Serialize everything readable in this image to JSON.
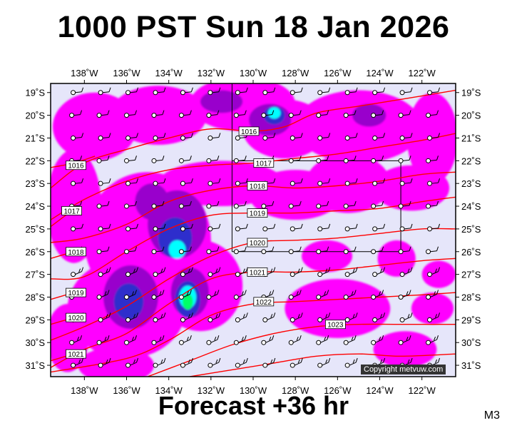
{
  "title": "1000 PST Sun 18 Jan 2026",
  "footer": "Forecast +36 hr",
  "model_code": "M3",
  "copyright": "Copyright metvuw.com",
  "colors": {
    "background": "#e6e6fa",
    "precip_light": "#ff00ff",
    "precip_medium": "#9900cc",
    "precip_heavy": "#2e2ecc",
    "precip_very_heavy": "#00ffff",
    "precip_extreme": "#00ff66",
    "isobar": "#ff0000",
    "frame": "#000000"
  },
  "chart_data": {
    "type": "map",
    "lon_ticks": [
      "138˚W",
      "136˚W",
      "134˚W",
      "132˚W",
      "130˚W",
      "128˚W",
      "126˚W",
      "124˚W",
      "122˚W"
    ],
    "lat_ticks": [
      "19˚S",
      "20˚S",
      "21˚S",
      "22˚S",
      "23˚S",
      "24˚S",
      "25˚S",
      "26˚S",
      "27˚S",
      "28˚S",
      "29˚S",
      "30˚S",
      "31˚S"
    ],
    "lon_range": [
      -139.6,
      -120.4
    ],
    "lat_range": [
      -31.5,
      -18.6
    ],
    "isobars": [
      {
        "label": "1016",
        "points": [
          [
            -139.6,
            -23.2
          ],
          [
            -138,
            -22.1
          ],
          [
            -136,
            -21.5
          ],
          [
            -134,
            -21.0
          ],
          [
            -132,
            -20.6
          ],
          [
            -130,
            -20.7
          ],
          [
            -128.5,
            -20.5
          ],
          [
            -127,
            -19.9
          ],
          [
            -125,
            -19.6
          ],
          [
            -123,
            -19.3
          ],
          [
            -120.4,
            -18.9
          ]
        ],
        "label_at": [
          -130.2,
          -20.7
        ]
      },
      {
        "label": "1016",
        "points": [
          [
            -139.6,
            -22.3
          ],
          [
            -138.5,
            -22.1
          ],
          [
            -137.5,
            -21.8
          ]
        ],
        "label_at": [
          -138.4,
          -22.2
        ]
      },
      {
        "label": "1017",
        "points": [
          [
            -139.6,
            -24.6
          ],
          [
            -138,
            -23.7
          ],
          [
            -136,
            -22.9
          ],
          [
            -134,
            -22.4
          ],
          [
            -132,
            -22.2
          ],
          [
            -130,
            -22.1
          ],
          [
            -128,
            -21.9
          ],
          [
            -126,
            -21.7
          ],
          [
            -124,
            -21.4
          ],
          [
            -122,
            -21.1
          ],
          [
            -120.4,
            -20.8
          ]
        ],
        "label_at": [
          -129.5,
          -22.1
        ]
      },
      {
        "label": "1017",
        "points": [
          [
            -139.6,
            -24.9
          ],
          [
            -138.6,
            -24.2
          ]
        ],
        "label_at": [
          -138.6,
          -24.2
        ]
      },
      {
        "label": "1018",
        "points": [
          [
            -139.6,
            -25.6
          ],
          [
            -138,
            -25.4
          ],
          [
            -136,
            -24.8
          ],
          [
            -134,
            -23.8
          ],
          [
            -132,
            -23.3
          ],
          [
            -130,
            -23.1
          ],
          [
            -128,
            -23.2
          ],
          [
            -126,
            -23.1
          ],
          [
            -124,
            -22.9
          ],
          [
            -122,
            -22.6
          ],
          [
            -120.4,
            -22.5
          ]
        ],
        "label_at": [
          -129.8,
          -23.1
        ]
      },
      {
        "label": "1018",
        "points": [
          [
            -139.6,
            -26.3
          ],
          [
            -138.5,
            -26.0
          ]
        ],
        "label_at": [
          -138.4,
          -26.0
        ]
      },
      {
        "label": "1019",
        "points": [
          [
            -139.6,
            -27.2
          ],
          [
            -138,
            -27.1
          ],
          [
            -136,
            -26.0
          ],
          [
            -134,
            -25.0
          ],
          [
            -132,
            -24.4
          ],
          [
            -130,
            -24.3
          ],
          [
            -128,
            -24.3
          ],
          [
            -126,
            -24.2
          ],
          [
            -124,
            -24.1
          ],
          [
            -122,
            -23.8
          ],
          [
            -120.4,
            -23.6
          ]
        ],
        "label_at": [
          -129.8,
          -24.3
        ]
      },
      {
        "label": "1019",
        "points": [
          [
            -139.6,
            -28.1
          ],
          [
            -138.5,
            -27.8
          ]
        ],
        "label_at": [
          -138.4,
          -27.8
        ]
      },
      {
        "label": "1020",
        "points": [
          [
            -139.6,
            -29.9
          ],
          [
            -138,
            -29.3
          ],
          [
            -136,
            -28.4
          ],
          [
            -134,
            -27.2
          ],
          [
            -132,
            -26.2
          ],
          [
            -130,
            -25.6
          ],
          [
            -128,
            -25.5
          ],
          [
            -126,
            -25.4
          ],
          [
            -124,
            -25.2
          ],
          [
            -122,
            -25.0
          ],
          [
            -120.4,
            -25.0
          ]
        ],
        "label_at": [
          -129.8,
          -25.6
        ]
      },
      {
        "label": "1020",
        "points": [
          [
            -139.6,
            -29.2
          ],
          [
            -138.5,
            -28.9
          ]
        ],
        "label_at": [
          -138.4,
          -28.9
        ]
      },
      {
        "label": "1021",
        "points": [
          [
            -139.6,
            -31.1
          ],
          [
            -138,
            -30.3
          ],
          [
            -136,
            -29.6
          ],
          [
            -134,
            -28.3
          ],
          [
            -132,
            -27.2
          ],
          [
            -130,
            -26.9
          ],
          [
            -128,
            -26.9
          ],
          [
            -126,
            -26.8
          ],
          [
            -124,
            -26.6
          ],
          [
            -122,
            -26.4
          ],
          [
            -120.4,
            -26.3
          ]
        ],
        "label_at": [
          -129.8,
          -26.9
        ]
      },
      {
        "label": "1021",
        "points": [
          [
            -139.6,
            -30.8
          ],
          [
            -138.5,
            -30.5
          ]
        ],
        "label_at": [
          -138.4,
          -30.5
        ]
      },
      {
        "label": "1022",
        "points": [
          [
            -139.6,
            -31.3
          ],
          [
            -136,
            -30.7
          ],
          [
            -134,
            -29.9
          ],
          [
            -132,
            -28.8
          ],
          [
            -130,
            -28.3
          ],
          [
            -128,
            -28.2
          ],
          [
            -126,
            -28.1
          ],
          [
            -124,
            -28.0
          ],
          [
            -122,
            -27.9
          ],
          [
            -120.4,
            -27.8
          ]
        ],
        "label_at": [
          -129.5,
          -28.2
        ]
      },
      {
        "label": "1023",
        "points": [
          [
            -135,
            -31.5
          ],
          [
            -133,
            -30.8
          ],
          [
            -131,
            -30.1
          ],
          [
            -129,
            -29.6
          ],
          [
            -127,
            -29.3
          ],
          [
            -125,
            -29.2
          ],
          [
            -123,
            -29.2
          ],
          [
            -120.4,
            -29.2
          ]
        ],
        "label_at": [
          -126.1,
          -29.2
        ]
      },
      {
        "label": "",
        "points": [
          [
            -133,
            -31.5
          ],
          [
            -131,
            -31.2
          ],
          [
            -129,
            -30.9
          ],
          [
            -127,
            -30.6
          ],
          [
            -125,
            -30.5
          ],
          [
            -123,
            -30.6
          ],
          [
            -120.4,
            -30.5
          ]
        ],
        "label_at": null
      }
    ],
    "precip_blobs": [
      {
        "intensity": 1,
        "lon": -137.5,
        "lat": -20.5,
        "rx": 2.0,
        "ry": 1.5
      },
      {
        "intensity": 1,
        "lon": -134.5,
        "lat": -20.0,
        "rx": 2.3,
        "ry": 1.3
      },
      {
        "intensity": 1,
        "lon": -130.5,
        "lat": -19.5,
        "rx": 2.5,
        "ry": 1.2
      },
      {
        "intensity": 1,
        "lon": -128.5,
        "lat": -20.6,
        "rx": 2.0,
        "ry": 1.3
      },
      {
        "intensity": 1,
        "lon": -125.0,
        "lat": -20.5,
        "rx": 3.0,
        "ry": 1.6
      },
      {
        "intensity": 1,
        "lon": -121.5,
        "lat": -21.0,
        "rx": 1.2,
        "ry": 2.0
      },
      {
        "intensity": 1,
        "lon": -138.5,
        "lat": -24.0,
        "rx": 1.3,
        "ry": 2.5
      },
      {
        "intensity": 1,
        "lon": -131.5,
        "lat": -23.0,
        "rx": 3.0,
        "ry": 1.0
      },
      {
        "intensity": 1,
        "lon": -128.0,
        "lat": -23.5,
        "rx": 2.2,
        "ry": 1.1
      },
      {
        "intensity": 1,
        "lon": -125.5,
        "lat": -23.0,
        "rx": 2.0,
        "ry": 1.3
      },
      {
        "intensity": 1,
        "lon": -122.5,
        "lat": -23.2,
        "rx": 1.8,
        "ry": 1.0
      },
      {
        "intensity": 1,
        "lon": -135.0,
        "lat": -25.5,
        "rx": 3.0,
        "ry": 3.0
      },
      {
        "intensity": 1,
        "lon": -136.0,
        "lat": -28.5,
        "rx": 2.8,
        "ry": 2.2
      },
      {
        "intensity": 1,
        "lon": -132.5,
        "lat": -27.5,
        "rx": 2.0,
        "ry": 2.0
      },
      {
        "intensity": 1,
        "lon": -138.8,
        "lat": -29.8,
        "rx": 1.0,
        "ry": 1.5
      },
      {
        "intensity": 1,
        "lon": -136.5,
        "lat": -31.0,
        "rx": 1.8,
        "ry": 0.8
      },
      {
        "intensity": 1,
        "lon": -126.5,
        "lat": -26.2,
        "rx": 1.2,
        "ry": 0.7
      },
      {
        "intensity": 1,
        "lon": -126.0,
        "lat": -28.5,
        "rx": 2.5,
        "ry": 1.3
      },
      {
        "intensity": 1,
        "lon": -123.2,
        "lat": -26.3,
        "rx": 0.9,
        "ry": 0.8
      },
      {
        "intensity": 1,
        "lon": -121.2,
        "lat": -27.0,
        "rx": 0.8,
        "ry": 0.6
      },
      {
        "intensity": 1,
        "lon": -122.8,
        "lat": -30.3,
        "rx": 1.5,
        "ry": 0.8
      },
      {
        "intensity": 1,
        "lon": -121.5,
        "lat": -28.5,
        "rx": 1.0,
        "ry": 0.7
      },
      {
        "intensity": 2,
        "lon": -131.5,
        "lat": -19.4,
        "rx": 1.0,
        "ry": 0.5
      },
      {
        "intensity": 2,
        "lon": -129.2,
        "lat": -20.2,
        "rx": 1.0,
        "ry": 0.7
      },
      {
        "intensity": 2,
        "lon": -133.6,
        "lat": -24.8,
        "rx": 1.4,
        "ry": 1.5
      },
      {
        "intensity": 2,
        "lon": -135.8,
        "lat": -28.0,
        "rx": 1.3,
        "ry": 1.4
      },
      {
        "intensity": 2,
        "lon": -133.0,
        "lat": -27.8,
        "rx": 0.9,
        "ry": 1.1
      },
      {
        "intensity": 2,
        "lon": -134.8,
        "lat": -23.8,
        "rx": 0.8,
        "ry": 0.8
      },
      {
        "intensity": 2,
        "lon": -124.5,
        "lat": -20.0,
        "rx": 0.8,
        "ry": 0.5
      },
      {
        "intensity": 3,
        "lon": -133.7,
        "lat": -25.4,
        "rx": 0.8,
        "ry": 0.9
      },
      {
        "intensity": 3,
        "lon": -135.9,
        "lat": -28.2,
        "rx": 0.7,
        "ry": 0.8
      },
      {
        "intensity": 3,
        "lon": -133.1,
        "lat": -28.1,
        "rx": 0.6,
        "ry": 0.8
      },
      {
        "intensity": 3,
        "lon": -129.0,
        "lat": -20.0,
        "rx": 0.5,
        "ry": 0.4
      },
      {
        "intensity": 4,
        "lon": -133.6,
        "lat": -25.9,
        "rx": 0.4,
        "ry": 0.4
      },
      {
        "intensity": 4,
        "lon": -129.0,
        "lat": -19.9,
        "rx": 0.3,
        "ry": 0.25
      },
      {
        "intensity": 4,
        "lon": -133.1,
        "lat": -28.0,
        "rx": 0.4,
        "ry": 0.5
      },
      {
        "intensity": 5,
        "lon": -133.1,
        "lat": -28.2,
        "rx": 0.25,
        "ry": 0.35
      }
    ],
    "wind_station_lons": [
      -138.6,
      -137.3,
      -136.0,
      -134.7,
      -133.4,
      -132.1,
      -130.8,
      -129.5,
      -128.2,
      -126.9,
      -125.6,
      -124.3,
      -123.0,
      -121.7
    ],
    "wind_station_lats": [
      -19.0,
      -20.0,
      -21.0,
      -22.0,
      -23.0,
      -24.0,
      -25.0,
      -26.0,
      -27.0,
      -28.0,
      -29.0,
      -30.0,
      -31.0
    ],
    "grid_lines": [
      {
        "type": "lon",
        "lon": -131,
        "lat_from": -18.6,
        "lat_to": -22.0
      },
      {
        "type": "lon",
        "lon": -131,
        "lat_from": -22.0,
        "lat_to": -26.0
      },
      {
        "type": "lon",
        "lon": -123,
        "lat_from": -22.0,
        "lat_to": -26.0
      },
      {
        "type": "lat",
        "lat": -22.0,
        "lon_from": -131,
        "lon_to": -123
      },
      {
        "type": "lat",
        "lat": -26.0,
        "lon_from": -131,
        "lon_to": -123
      }
    ]
  }
}
